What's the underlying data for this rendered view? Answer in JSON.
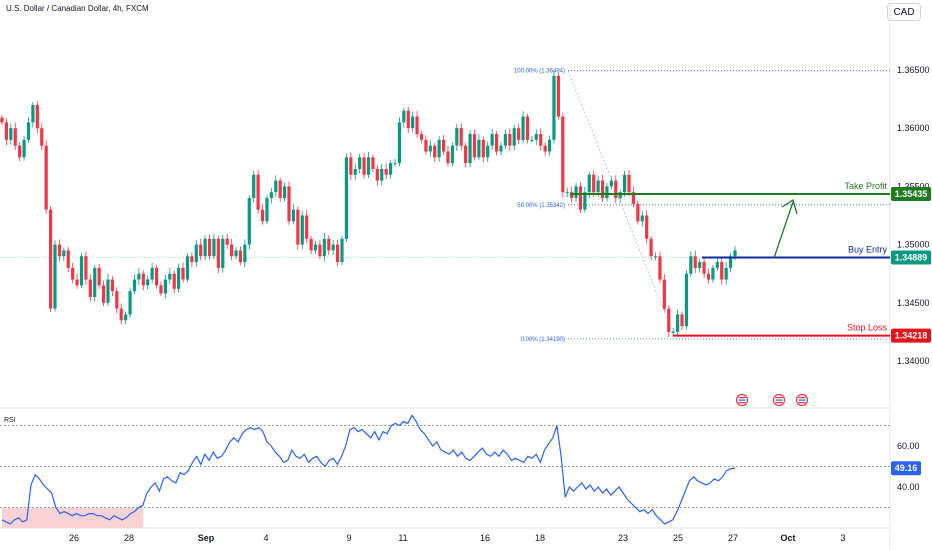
{
  "header": {
    "symbol_title": "U.S. Dollar / Canadian Dollar, 4h, FXCM",
    "currency": "CAD"
  },
  "colors": {
    "bull": "#089981",
    "bear": "#f23645",
    "take_profit": "#1e7b1e",
    "buy_entry": "#0d2b9e",
    "stop_loss": "#e3141b",
    "fib": "#2962ff",
    "rsi_line": "#2962ff",
    "rsi_oversold_fill": "#f9d2d6"
  },
  "chart_data": [
    {
      "type": "candlestick",
      "ylim": [
        1.3375,
        1.3675
      ],
      "y_ticks": [
        "1.36500",
        "1.36000",
        "1.35500",
        "1.35000",
        "1.34500",
        "1.34000"
      ],
      "x_ticks": [
        "26",
        "28",
        "Sep",
        "4",
        "9",
        "11",
        "16",
        "18",
        "23",
        "25",
        "27",
        "Oct",
        "3"
      ],
      "current_price": "1.34889",
      "levels": [
        {
          "name": "take_profit",
          "label": "Take Profit",
          "value": "1.35435"
        },
        {
          "name": "buy_entry",
          "label": "Buy Entry",
          "value": "1.34889"
        },
        {
          "name": "stop_loss",
          "label": "Stop Loss",
          "value": "1.34218"
        }
      ],
      "fibonacci": [
        {
          "label": "100.00% (1.36494)",
          "value": 1.36494
        },
        {
          "label": "50.00% (1.35342)",
          "value": 1.35342
        },
        {
          "label": "0.00% (1.34190)",
          "value": 1.3419
        }
      ],
      "closes": [
        1.3605,
        1.359,
        1.36,
        1.3585,
        1.3575,
        1.359,
        1.3605,
        1.362,
        1.36,
        1.3585,
        1.353,
        1.3445,
        1.35,
        1.349,
        1.3495,
        1.348,
        1.347,
        1.3465,
        1.349,
        1.347,
        1.3455,
        1.348,
        1.3465,
        1.345,
        1.347,
        1.346,
        1.3445,
        1.3435,
        1.344,
        1.346,
        1.347,
        1.3475,
        1.3465,
        1.347,
        1.348,
        1.3465,
        1.3458,
        1.347,
        1.3475,
        1.3462,
        1.348,
        1.347,
        1.349,
        1.3485,
        1.35,
        1.349,
        1.3505,
        1.349,
        1.3505,
        1.348,
        1.3505,
        1.35,
        1.349,
        1.3495,
        1.3485,
        1.35,
        1.354,
        1.356,
        1.353,
        1.352,
        1.354,
        1.3545,
        1.3555,
        1.354,
        1.355,
        1.352,
        1.353,
        1.35,
        1.3525,
        1.3505,
        1.3495,
        1.35,
        1.349,
        1.3505,
        1.3495,
        1.35,
        1.3485,
        1.3505,
        1.3575,
        1.356,
        1.3565,
        1.3575,
        1.356,
        1.3575,
        1.3565,
        1.3555,
        1.3565,
        1.356,
        1.357,
        1.357,
        1.3605,
        1.3615,
        1.36,
        1.361,
        1.3595,
        1.359,
        1.358,
        1.3585,
        1.3575,
        1.359,
        1.358,
        1.357,
        1.3585,
        1.36,
        1.3585,
        1.357,
        1.3595,
        1.3575,
        1.359,
        1.3575,
        1.3585,
        1.3595,
        1.358,
        1.3585,
        1.3595,
        1.3585,
        1.36,
        1.359,
        1.361,
        1.359,
        1.359,
        1.3595,
        1.3585,
        1.358,
        1.359,
        1.3645,
        1.361,
        1.3545,
        1.3545,
        1.354,
        1.355,
        1.353,
        1.3545,
        1.356,
        1.3545,
        1.3555,
        1.354,
        1.355,
        1.3555,
        1.354,
        1.3545,
        1.356,
        1.3545,
        1.3535,
        1.352,
        1.3525,
        1.3505,
        1.349,
        1.349,
        1.347,
        1.3445,
        1.3425,
        1.3425,
        1.344,
        1.343,
        1.3475,
        1.349,
        1.348,
        1.3485,
        1.3475,
        1.347,
        1.348,
        1.3485,
        1.347,
        1.348,
        1.349,
        1.3495
      ]
    },
    {
      "type": "line",
      "name": "RSI",
      "label": "RSI",
      "ylim": [
        20,
        80
      ],
      "y_ticks": [
        "60.00",
        "40.00"
      ],
      "bands": [
        70,
        50,
        30
      ],
      "current_value": "49.16",
      "values": [
        24,
        23,
        22,
        24,
        25,
        23,
        24,
        41,
        46,
        44,
        41,
        39,
        37,
        30,
        27,
        28,
        27,
        26,
        27,
        26,
        26,
        27,
        27,
        26,
        26,
        25,
        24,
        26,
        25,
        24,
        25,
        27,
        28,
        30,
        31,
        37,
        40,
        42,
        38,
        44,
        45,
        43,
        42,
        47,
        46,
        48,
        52,
        55,
        51,
        56,
        53,
        57,
        54,
        55,
        58,
        62,
        64,
        62,
        66,
        68,
        69,
        68,
        69,
        67,
        62,
        60,
        57,
        55,
        52,
        53,
        58,
        55,
        54,
        56,
        52,
        54,
        55,
        52,
        50,
        53,
        54,
        51,
        55,
        60,
        68,
        69,
        67,
        68,
        66,
        64,
        67,
        63,
        67,
        66,
        70,
        71,
        70,
        72,
        71,
        75,
        72,
        68,
        66,
        63,
        60,
        62,
        58,
        57,
        56,
        58,
        55,
        57,
        54,
        53,
        55,
        57,
        59,
        56,
        55,
        57,
        55,
        58,
        56,
        53,
        54,
        53,
        52,
        55,
        54,
        56,
        52,
        58,
        61,
        64,
        70,
        55,
        35,
        40,
        38,
        40,
        42,
        39,
        41,
        38,
        40,
        37,
        39,
        36,
        38,
        40,
        37,
        34,
        32,
        30,
        28,
        29,
        27,
        29,
        26,
        24,
        22,
        23,
        24,
        28,
        33,
        38,
        43,
        45,
        43,
        42,
        41,
        42,
        44,
        43,
        45,
        48,
        49,
        49.16
      ]
    }
  ]
}
